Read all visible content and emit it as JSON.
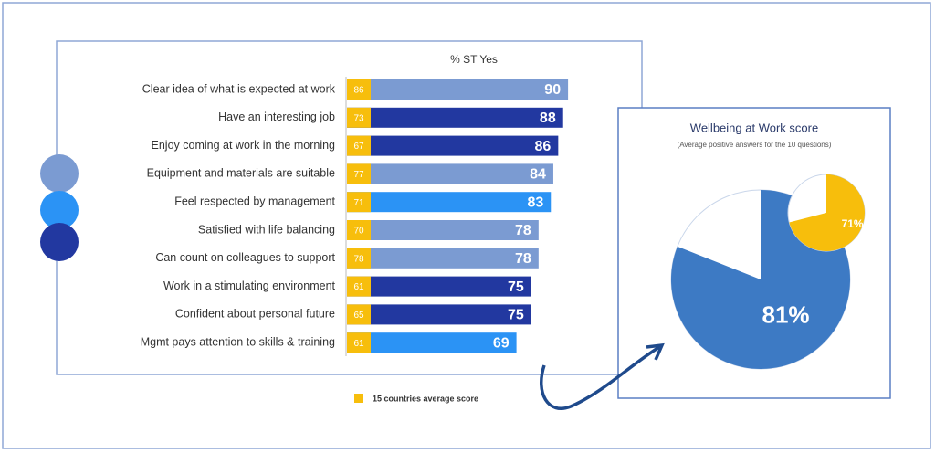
{
  "chart_data": [
    {
      "type": "bar",
      "title": "% ST Yes",
      "categories": [
        "Clear idea of what is expected at work",
        "Have an interesting job",
        "Enjoy coming at work in the morning",
        "Equipment and materials are suitable",
        "Feel respected by management",
        "Satisfied with life balancing",
        "Can count on colleagues to support",
        "Work in a stimulating environment",
        "Confident about personal future",
        "Mgmt pays attention to skills & training"
      ],
      "values": [
        90,
        88,
        86,
        84,
        83,
        78,
        78,
        75,
        75,
        69
      ],
      "colors": [
        "#7b9bd2",
        "#2238a0",
        "#2238a0",
        "#7b9bd2",
        "#2b93f5",
        "#7b9bd2",
        "#7b9bd2",
        "#2238a0",
        "#2238a0",
        "#2b93f5"
      ],
      "benchmark": {
        "name": "15 countries average score",
        "color": "#f7be0c",
        "values": [
          86,
          73,
          67,
          77,
          71,
          70,
          78,
          61,
          65,
          61
        ]
      }
    },
    {
      "type": "pie",
      "title": "Wellbeing at Work score",
      "subtitle": "(Average positive answers for the 10 questions)",
      "values": [
        81
      ],
      "value_labels": [
        "81%"
      ],
      "color": "#3d7ac4"
    },
    {
      "type": "pie",
      "values": [
        71
      ],
      "value_labels": [
        "71%"
      ],
      "color": "#f7be0c"
    }
  ]
}
